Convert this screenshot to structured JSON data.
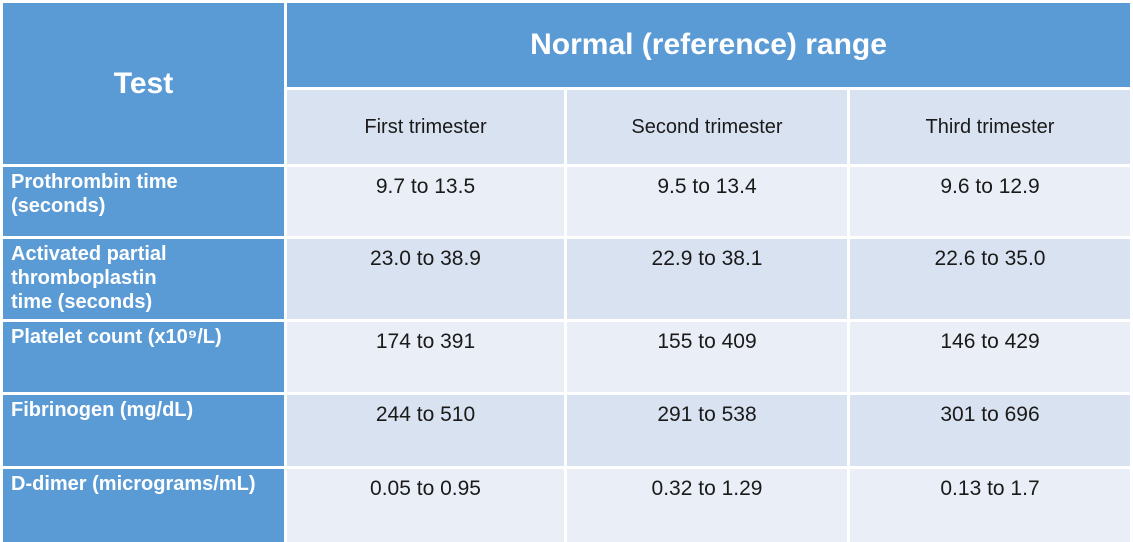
{
  "colors": {
    "header_blue": "#5B9BD5",
    "band_light": "#EAEFF7",
    "band_medium": "#D9E2F0",
    "grid_white": "#FFFFFF",
    "header_text": "#FFFFFF",
    "body_text": "#1A1A1A",
    "bottom_edge_blue": "#4E86BB"
  },
  "table": {
    "corner_header": "Test",
    "group_header": "Normal (reference) range",
    "column_headers": [
      "First trimester",
      "Second trimester",
      "Third trimester"
    ],
    "rows": [
      {
        "test": "Prothrombin time\n(seconds)",
        "values": [
          "9.7 to 13.5",
          "9.5 to 13.4",
          "9.6 to 12.9"
        ]
      },
      {
        "test": "Activated partial\nthromboplastin\ntime (seconds)",
        "values": [
          "23.0 to 38.9",
          "22.9 to 38.1",
          "22.6 to 35.0"
        ]
      },
      {
        "test": "Platelet count (x10⁹/L)",
        "values": [
          "174 to 391",
          "155 to 409",
          "146 to 429"
        ]
      },
      {
        "test": "Fibrinogen (mg/dL)",
        "values": [
          "244 to 510",
          "291 to 538",
          "301 to 696"
        ]
      },
      {
        "test": "D-dimer (micrograms/mL)",
        "values": [
          "0.05 to 0.95",
          "0.32 to 1.29",
          "0.13 to 1.7"
        ]
      }
    ]
  },
  "chart_data": {
    "type": "table",
    "title": "Normal (reference) range",
    "columns": [
      "Test",
      "First trimester",
      "Second trimester",
      "Third trimester"
    ],
    "rows": [
      [
        "Prothrombin time (seconds)",
        "9.7 to 13.5",
        "9.5 to 13.4",
        "9.6 to 12.9"
      ],
      [
        "Activated partial thromboplastin time (seconds)",
        "23.0 to 38.9",
        "22.9 to 38.1",
        "22.6 to 35.0"
      ],
      [
        "Platelet count (x10⁹/L)",
        "174 to 391",
        "155 to 409",
        "146 to 429"
      ],
      [
        "Fibrinogen (mg/dL)",
        "244 to 510",
        "291 to 538",
        "301 to 696"
      ],
      [
        "D-dimer (micrograms/mL)",
        "0.05 to 0.95",
        "0.32 to 1.29",
        "0.13 to 1.7"
      ]
    ],
    "layout": {
      "header_band": "blue",
      "row_banding": [
        "light",
        "medium",
        "light",
        "medium",
        "light"
      ],
      "grid": "white separators"
    }
  }
}
